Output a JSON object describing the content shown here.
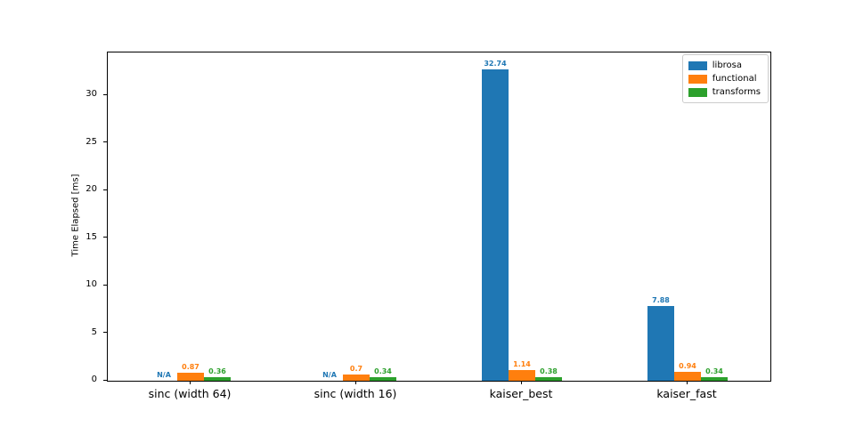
{
  "chart_data": {
    "type": "bar",
    "title": "",
    "xlabel": "",
    "ylabel": "Time Elapsed [ms]",
    "categories": [
      "sinc (width 64)",
      "sinc (width 16)",
      "kaiser_best",
      "kaiser_fast"
    ],
    "series": [
      {
        "name": "librosa",
        "color": "#1f77b4",
        "values": [
          null,
          null,
          32.74,
          7.88
        ],
        "labels": [
          "N/A",
          "N/A",
          "32.74",
          "7.88"
        ]
      },
      {
        "name": "functional",
        "color": "#ff7f0e",
        "values": [
          0.87,
          0.7,
          1.14,
          0.94
        ],
        "labels": [
          "0.87",
          "0.7",
          "1.14",
          "0.94"
        ]
      },
      {
        "name": "transforms",
        "color": "#2ca02c",
        "values": [
          0.36,
          0.34,
          0.38,
          0.34
        ],
        "labels": [
          "0.36",
          "0.34",
          "0.38",
          "0.34"
        ]
      }
    ],
    "yticks": [
      0,
      5,
      10,
      15,
      20,
      25,
      30
    ],
    "ylim": [
      0,
      34.5
    ],
    "grid": false,
    "legend_position": "upper right",
    "axis_color": "#000000",
    "background_color": "#ffffff"
  }
}
